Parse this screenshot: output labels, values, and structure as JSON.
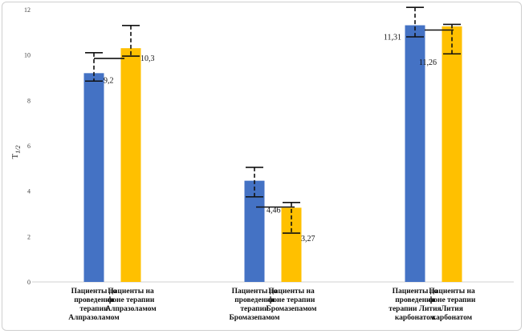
{
  "chart_data": {
    "type": "bar",
    "title": "",
    "xlabel": "",
    "ylabel": "T1/2",
    "ylim": [
      0,
      12
    ],
    "yticks": [
      "0",
      "2",
      "4",
      "6",
      "8",
      "10",
      "12"
    ],
    "grid": false,
    "colors": {
      "blue": "#4472c4",
      "gold": "#ffc000"
    },
    "groups": [
      {
        "bars": [
          {
            "label": [
              "Пациенты до",
              "проведения",
              "терапии",
              "Алпразоламом"
            ],
            "value": 9.2,
            "value_label": "9,2",
            "err_low": 8.85,
            "err_high": 10.1,
            "color": "#4472c4"
          },
          {
            "label": [
              "Пациенты на",
              "фоне терапии",
              "Алпразоламом"
            ],
            "value": 10.3,
            "value_label": "10,3",
            "err_low": 9.95,
            "err_high": 11.3,
            "color": "#ffc000"
          }
        ]
      },
      {
        "bars": [
          {
            "label": [
              "Пациенты до",
              "проведения",
              "терапии",
              "Бромазепамом"
            ],
            "value": 4.46,
            "value_label": "4,46",
            "err_low": 3.75,
            "err_high": 5.05,
            "color": "#4472c4"
          },
          {
            "label": [
              "Пациенты на",
              "фоне терапии",
              "Бромазепамом"
            ],
            "value": 3.27,
            "value_label": "3,27",
            "err_low": 2.15,
            "err_high": 3.5,
            "color": "#ffc000"
          }
        ]
      },
      {
        "bars": [
          {
            "label": [
              "Пациенты до",
              "проведения",
              "терапии Лития",
              "карбонатом"
            ],
            "value": 11.31,
            "value_label": "11,31",
            "err_low": 10.8,
            "err_high": 12.1,
            "color": "#4472c4"
          },
          {
            "label": [
              "Пациенты на",
              "фоне терапии",
              "Лития",
              "карбонатом"
            ],
            "value": 11.26,
            "value_label": "11,26",
            "err_low": 10.05,
            "err_high": 11.35,
            "color": "#ffc000"
          }
        ]
      }
    ]
  }
}
